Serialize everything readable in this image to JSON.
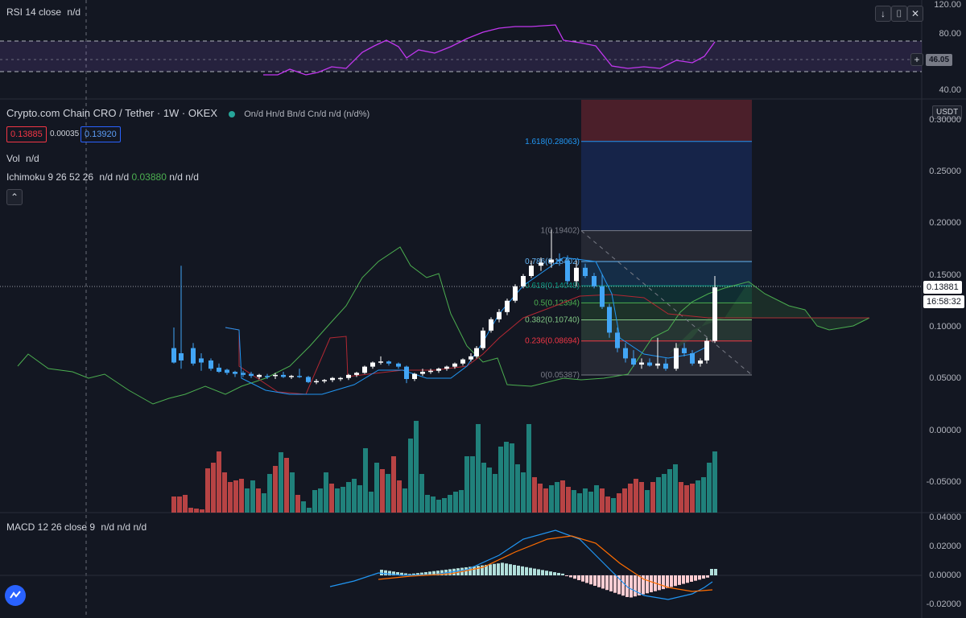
{
  "rsi": {
    "label": "RSI 14 close",
    "value": "n/d",
    "axis": [
      "120.00",
      "80.00",
      "40.00"
    ],
    "current": "46.05",
    "buttons": [
      "↓",
      "⌷",
      "✕",
      "⌐"
    ]
  },
  "main": {
    "title": "Crypto.com Chain CRO / Tether · 1W · OKEX",
    "ohlc": "On/d Hn/d Bn/d Cn/d n/d (n/d%)",
    "bid": "0.13885",
    "spread": "0.00035",
    "ask": "0.13920",
    "vol_label": "Vol",
    "vol_value": "n/d",
    "ichimoku_label": "Ichimoku 9 26 52 26",
    "ichimoku_values": [
      "n/d",
      "n/d",
      "0.03880",
      "n/d",
      "n/d"
    ],
    "currency": "USDT",
    "price_axis": [
      "0.30000",
      "0.25000",
      "0.20000",
      "0.15000",
      "0.10000",
      "0.05000",
      "0.00000",
      "-0.05000"
    ],
    "last_price": "0.13881",
    "countdown": "16:58:32",
    "fib_levels": [
      {
        "label": "1.618(0.28063)",
        "value": 0.28063,
        "color": "#2196f3"
      },
      {
        "label": "1(0.19402)",
        "value": 0.19402,
        "color": "#787b86"
      },
      {
        "label": "0.786(0.16402)",
        "value": 0.16402,
        "color": "#64b5f6"
      },
      {
        "label": "0.618(0.14048)",
        "value": 0.14048,
        "color": "#089981"
      },
      {
        "label": "0.5(0.12394)",
        "value": 0.12394,
        "color": "#4caf50"
      },
      {
        "label": "0.382(0.10740)",
        "value": 0.1074,
        "color": "#81c784"
      },
      {
        "label": "0.236(0.08694)",
        "value": 0.08694,
        "color": "#f23645"
      },
      {
        "label": "0(0.05387)",
        "value": 0.05387,
        "color": "#787b86"
      }
    ]
  },
  "macd": {
    "label": "MACD 12 26 close 9",
    "values": "n/d n/d n/d",
    "axis": [
      "0.04000",
      "0.02000",
      "0.00000",
      "-0.02000"
    ]
  },
  "colors": {
    "up": "#ffffff",
    "down": "#42a5f5",
    "vol_up": "#26a69a",
    "vol_down": "#ef5350",
    "bg": "#131722"
  }
}
